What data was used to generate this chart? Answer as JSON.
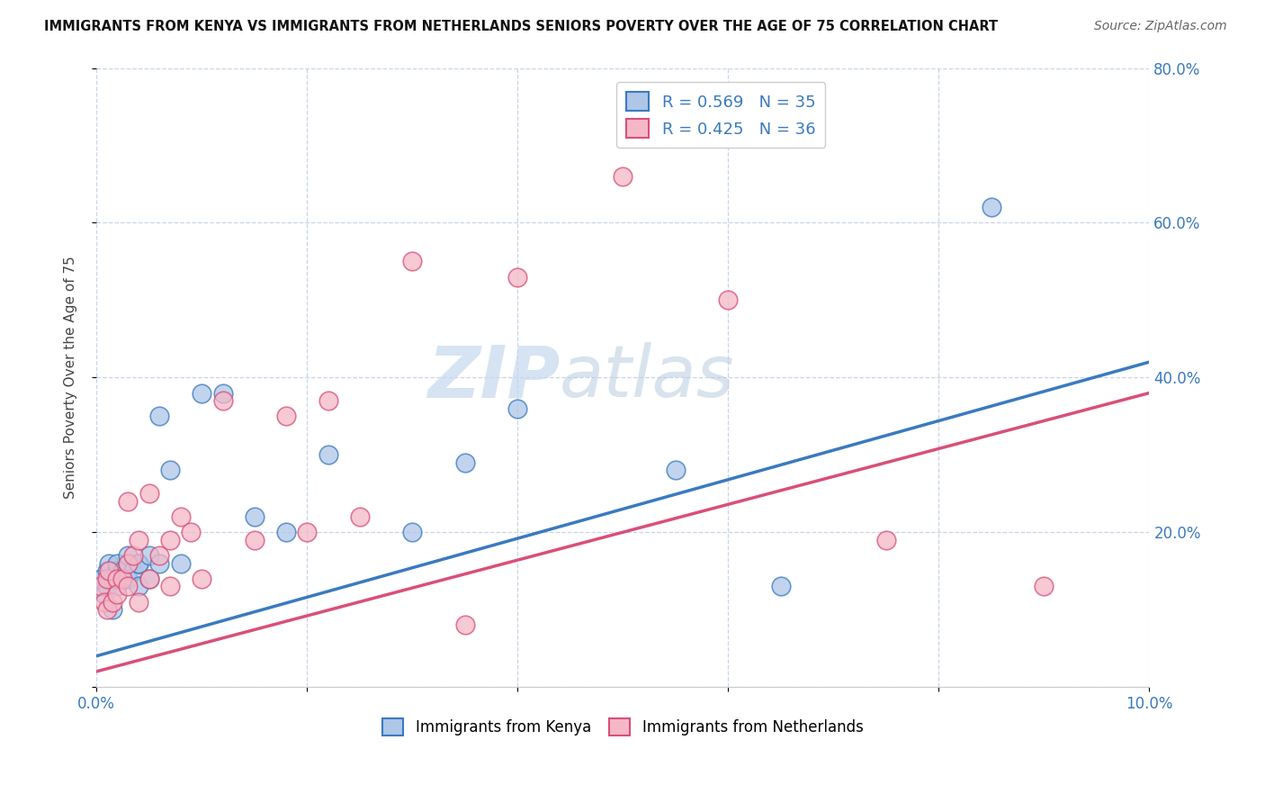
{
  "title": "IMMIGRANTS FROM KENYA VS IMMIGRANTS FROM NETHERLANDS SENIORS POVERTY OVER THE AGE OF 75 CORRELATION CHART",
  "source": "Source: ZipAtlas.com",
  "ylabel": "Seniors Poverty Over the Age of 75",
  "xlabel": "",
  "watermark_zip": "ZIP",
  "watermark_atlas": "atlas",
  "kenya_R": 0.569,
  "kenya_N": 35,
  "netherlands_R": 0.425,
  "netherlands_N": 36,
  "xlim": [
    0.0,
    0.1
  ],
  "ylim": [
    0.0,
    0.8
  ],
  "xticks": [
    0.0,
    0.02,
    0.04,
    0.06,
    0.08,
    0.1
  ],
  "yticks": [
    0.0,
    0.2,
    0.4,
    0.6,
    0.8
  ],
  "xticklabels": [
    "0.0%",
    "",
    "",
    "",
    "",
    "10.0%"
  ],
  "yticklabels": [
    "",
    "20.0%",
    "40.0%",
    "60.0%",
    "80.0%"
  ],
  "kenya_color": "#aec6e8",
  "kenya_line_color": "#3a7abf",
  "netherlands_color": "#f5b8c8",
  "netherlands_line_color": "#d94f78",
  "background_color": "#ffffff",
  "grid_color": "#c8d4e8",
  "kenya_x": [
    0.0004,
    0.0008,
    0.001,
    0.001,
    0.0012,
    0.0015,
    0.0015,
    0.002,
    0.002,
    0.002,
    0.0025,
    0.003,
    0.003,
    0.003,
    0.0035,
    0.004,
    0.004,
    0.004,
    0.005,
    0.005,
    0.006,
    0.006,
    0.007,
    0.008,
    0.01,
    0.012,
    0.015,
    0.018,
    0.022,
    0.03,
    0.035,
    0.04,
    0.055,
    0.065,
    0.085
  ],
  "kenya_y": [
    0.14,
    0.12,
    0.15,
    0.13,
    0.16,
    0.14,
    0.1,
    0.15,
    0.16,
    0.13,
    0.15,
    0.16,
    0.14,
    0.17,
    0.15,
    0.16,
    0.13,
    0.16,
    0.17,
    0.14,
    0.35,
    0.16,
    0.28,
    0.16,
    0.38,
    0.38,
    0.22,
    0.2,
    0.3,
    0.2,
    0.29,
    0.36,
    0.28,
    0.13,
    0.62
  ],
  "netherlands_x": [
    0.0004,
    0.0008,
    0.001,
    0.001,
    0.0012,
    0.0015,
    0.002,
    0.002,
    0.0025,
    0.003,
    0.003,
    0.003,
    0.0035,
    0.004,
    0.004,
    0.005,
    0.005,
    0.006,
    0.007,
    0.007,
    0.008,
    0.009,
    0.01,
    0.012,
    0.015,
    0.018,
    0.02,
    0.022,
    0.025,
    0.03,
    0.035,
    0.04,
    0.05,
    0.06,
    0.075,
    0.09
  ],
  "netherlands_y": [
    0.13,
    0.11,
    0.14,
    0.1,
    0.15,
    0.11,
    0.14,
    0.12,
    0.14,
    0.16,
    0.13,
    0.24,
    0.17,
    0.19,
    0.11,
    0.14,
    0.25,
    0.17,
    0.19,
    0.13,
    0.22,
    0.2,
    0.14,
    0.37,
    0.19,
    0.35,
    0.2,
    0.37,
    0.22,
    0.55,
    0.08,
    0.53,
    0.66,
    0.5,
    0.19,
    0.13
  ]
}
